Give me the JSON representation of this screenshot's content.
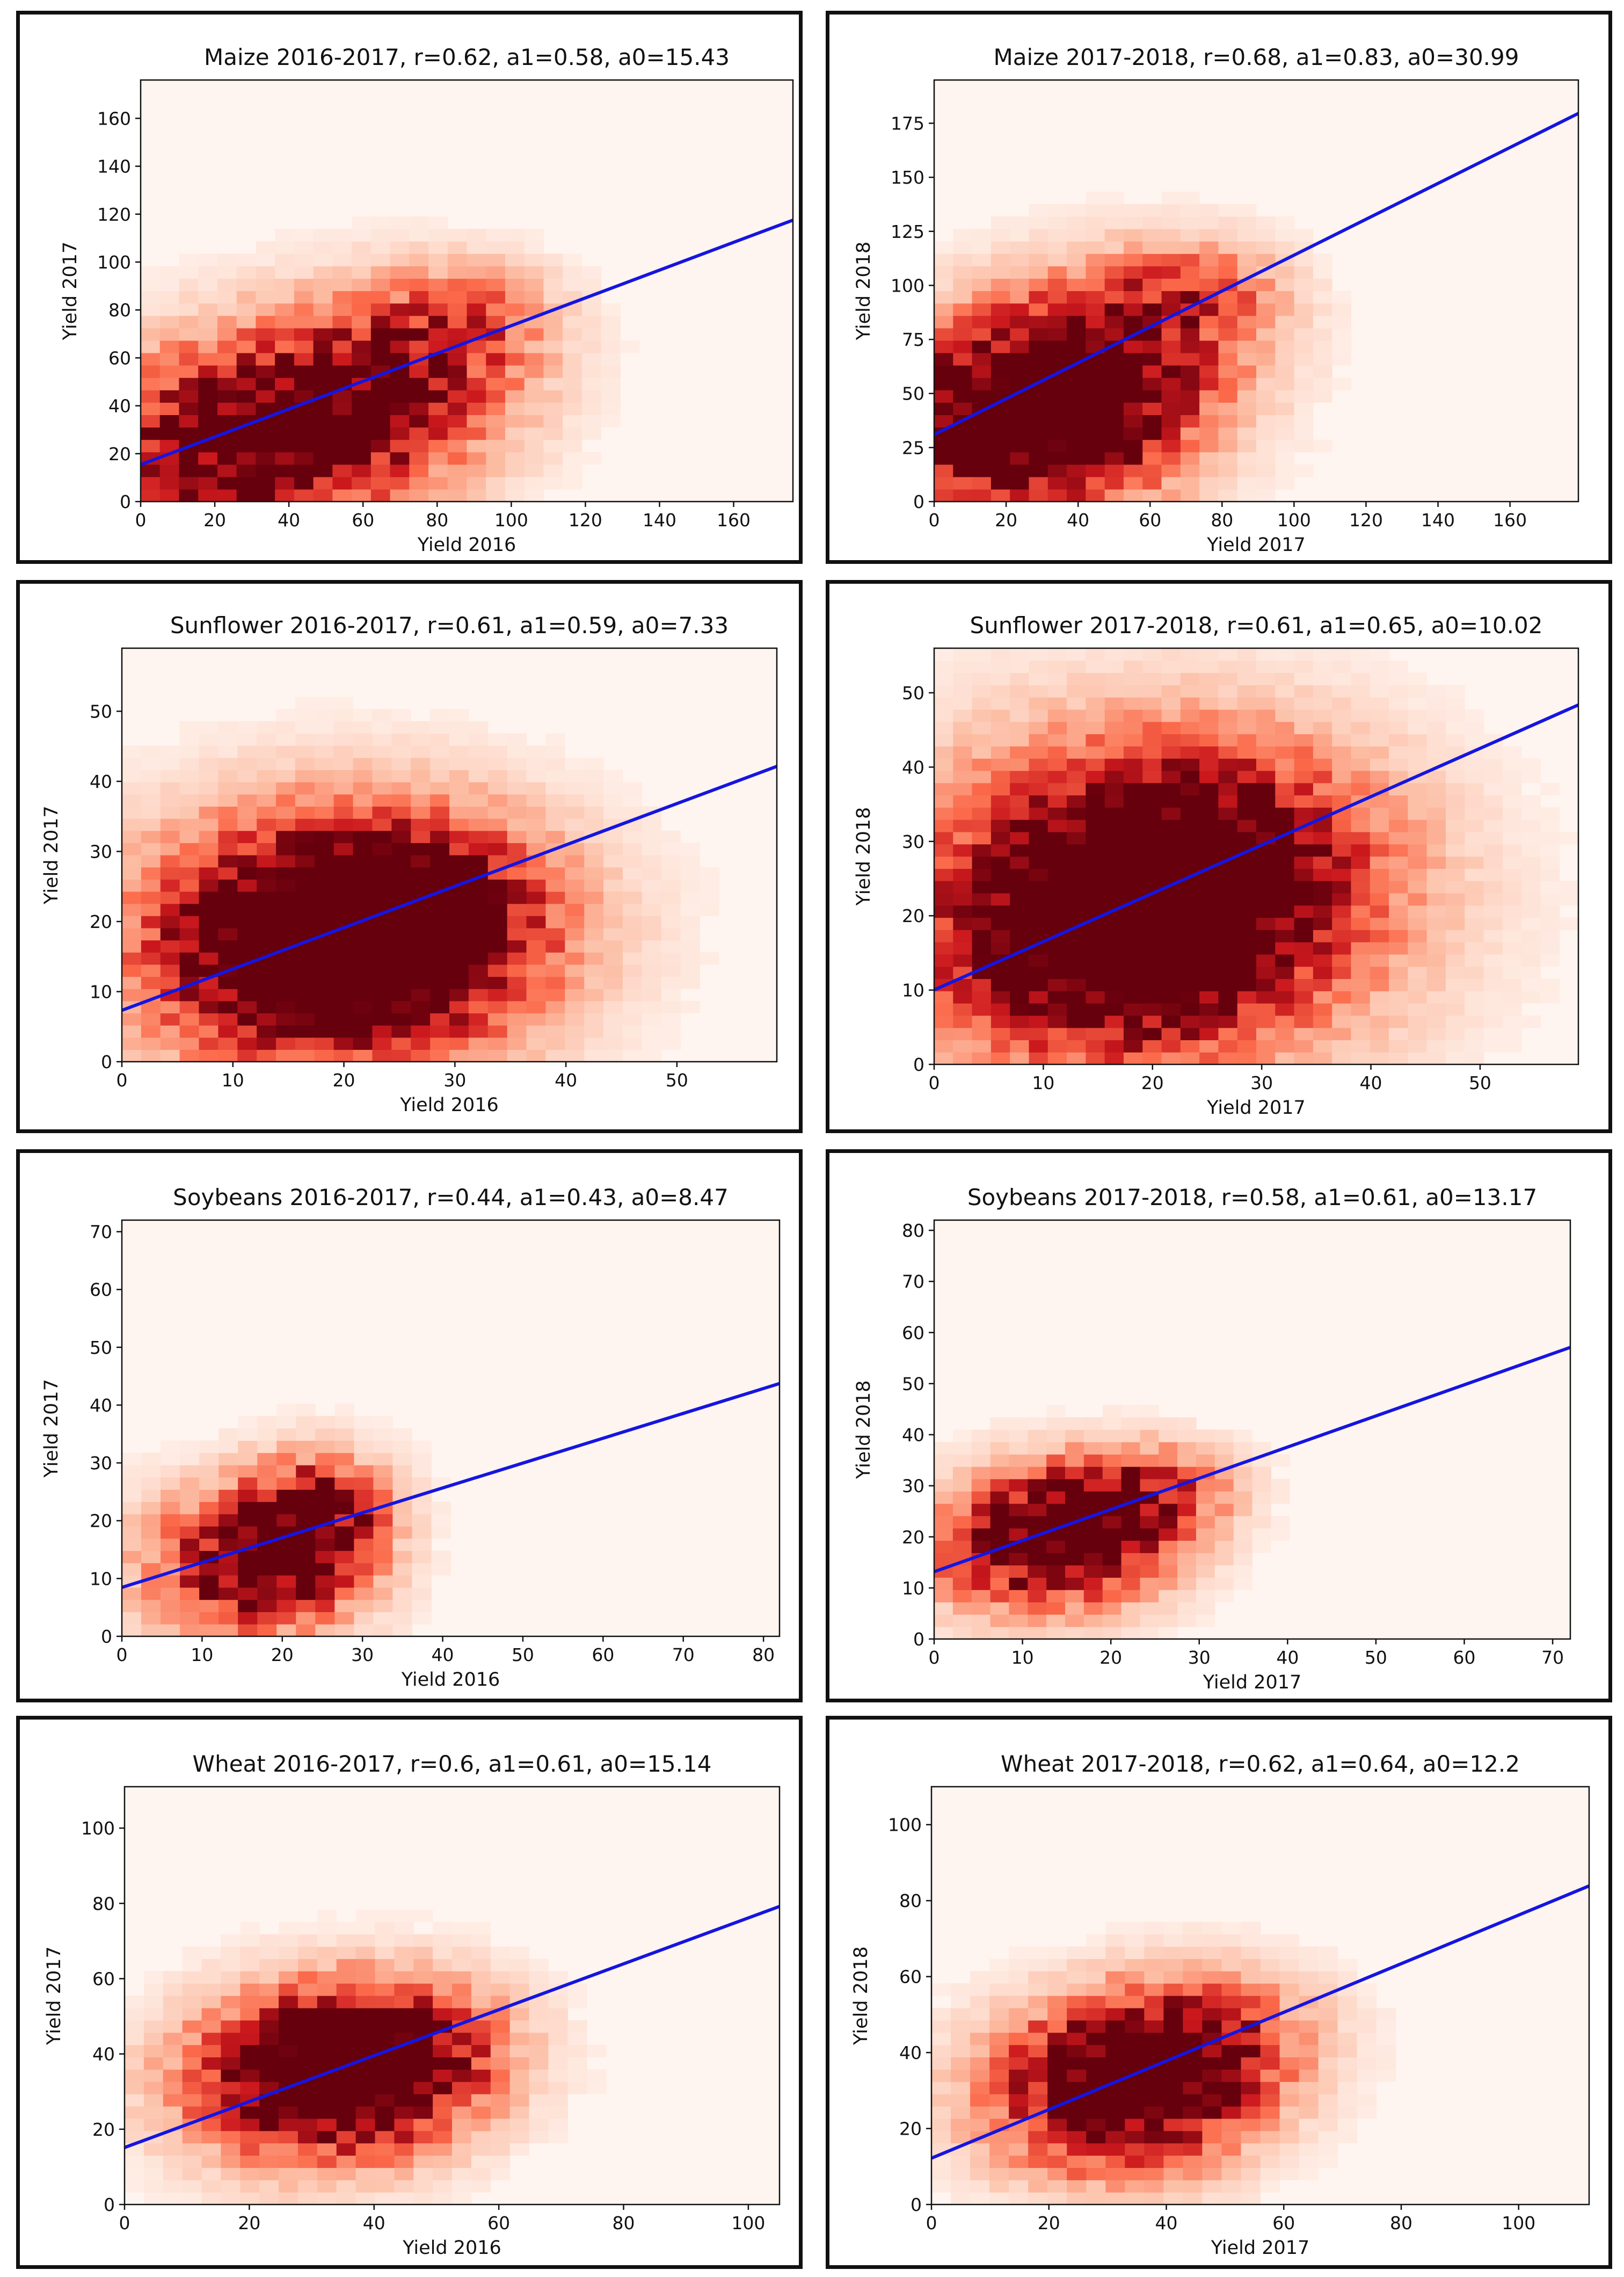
{
  "chart_data": [
    {
      "type": "heatmap",
      "title": "Maize 2016-2017, r=0.62, a1=0.58, a0=15.43",
      "xlabel": "Yield 2016",
      "ylabel": "Yield 2017",
      "xlim": [
        0,
        176
      ],
      "ylim": [
        0,
        176
      ],
      "xticks": [
        0,
        20,
        40,
        60,
        80,
        100,
        120,
        140,
        160
      ],
      "yticks": [
        0,
        20,
        40,
        60,
        80,
        100,
        120,
        140,
        160
      ],
      "regression": {
        "slope": 0.58,
        "intercept": 15.43,
        "color": "#1515e0"
      },
      "density": {
        "centers": [
          [
            25,
            22,
            55,
            1.0
          ],
          [
            55,
            40,
            55,
            0.6
          ],
          [
            75,
            60,
            45,
            0.45
          ],
          [
            90,
            80,
            30,
            0.3
          ]
        ],
        "noise": 0.35
      },
      "bins": 34
    },
    {
      "type": "heatmap",
      "title": "Maize 2017-2018, r=0.68, a1=0.83, a0=30.99",
      "xlabel": "Yield 2017",
      "ylabel": "Yield 2018",
      "xlim": [
        0,
        179
      ],
      "ylim": [
        0,
        195
      ],
      "xticks": [
        0,
        20,
        40,
        60,
        80,
        100,
        120,
        140,
        160
      ],
      "yticks": [
        0,
        25,
        50,
        75,
        100,
        125,
        150,
        175
      ],
      "regression": {
        "slope": 0.83,
        "intercept": 30.99,
        "color": "#1515e0"
      },
      "density": {
        "centers": [
          [
            22,
            30,
            55,
            1.0
          ],
          [
            35,
            52,
            55,
            0.8
          ],
          [
            55,
            80,
            50,
            0.5
          ],
          [
            75,
            100,
            30,
            0.35
          ]
        ],
        "noise": 0.35
      },
      "bins": 34
    },
    {
      "type": "heatmap",
      "title": "Sunflower 2016-2017, r=0.61, a1=0.59, a0=7.33",
      "xlabel": "Yield 2016",
      "ylabel": "Yield 2017",
      "xlim": [
        0,
        59
      ],
      "ylim": [
        0,
        59
      ],
      "xticks": [
        0,
        10,
        20,
        30,
        40,
        50
      ],
      "yticks": [
        0,
        10,
        20,
        30,
        40,
        50
      ],
      "regression": {
        "slope": 0.59,
        "intercept": 7.33,
        "color": "#1515e0"
      },
      "density": {
        "centers": [
          [
            20,
            18,
            25,
            1.0
          ],
          [
            17,
            14,
            20,
            0.6
          ],
          [
            25,
            22,
            18,
            0.6
          ]
        ],
        "noise": 0.3
      },
      "bins": 34
    },
    {
      "type": "heatmap",
      "title": "Sunflower 2017-2018, r=0.61, a1=0.65, a0=10.02",
      "xlabel": "Yield 2017",
      "ylabel": "Yield 2018",
      "xlim": [
        0,
        59
      ],
      "ylim": [
        0,
        56
      ],
      "xticks": [
        0,
        10,
        20,
        30,
        40,
        50
      ],
      "yticks": [
        0,
        10,
        20,
        30,
        40,
        50
      ],
      "regression": {
        "slope": 0.65,
        "intercept": 10.02,
        "color": "#1515e0"
      },
      "density": {
        "centers": [
          [
            19,
            22,
            30,
            1.0
          ],
          [
            15,
            15,
            20,
            0.6
          ],
          [
            25,
            28,
            20,
            0.6
          ]
        ],
        "noise": 0.3
      },
      "bins": 34
    },
    {
      "type": "heatmap",
      "title": "Soybeans 2016-2017, r=0.44, a1=0.43, a0=8.47",
      "xlabel": "Yield 2016",
      "ylabel": "Yield 2017",
      "xlim": [
        0,
        82
      ],
      "ylim": [
        0,
        72
      ],
      "xticks": [
        0,
        10,
        20,
        30,
        40,
        50,
        60,
        70,
        80
      ],
      "yticks": [
        0,
        10,
        20,
        30,
        40,
        50,
        60,
        70
      ],
      "regression": {
        "slope": 0.43,
        "intercept": 8.47,
        "color": "#1515e0"
      },
      "density": {
        "centers": [
          [
            16,
            12,
            18,
            1.0
          ],
          [
            23,
            18,
            12,
            0.7
          ],
          [
            25,
            25,
            12,
            0.45
          ]
        ],
        "noise": 0.4
      },
      "bins": 34
    },
    {
      "type": "heatmap",
      "title": "Soybeans 2017-2018, r=0.58, a1=0.61, a0=13.17",
      "xlabel": "Yield 2017",
      "ylabel": "Yield 2018",
      "xlim": [
        0,
        72
      ],
      "ylim": [
        0,
        82
      ],
      "xticks": [
        0,
        10,
        20,
        30,
        40,
        50,
        60,
        70
      ],
      "yticks": [
        0,
        10,
        20,
        30,
        40,
        50,
        60,
        70,
        80
      ],
      "regression": {
        "slope": 0.61,
        "intercept": 13.17,
        "color": "#1515e0"
      },
      "density": {
        "centers": [
          [
            12,
            18,
            18,
            1.0
          ],
          [
            18,
            25,
            15,
            0.7
          ],
          [
            26,
            30,
            12,
            0.4
          ]
        ],
        "noise": 0.35
      },
      "bins": 34
    },
    {
      "type": "heatmap",
      "title": "Wheat 2016-2017, r=0.6, a1=0.61, a0=15.14",
      "xlabel": "Yield 2016",
      "ylabel": "Yield 2017",
      "xlim": [
        0,
        105
      ],
      "ylim": [
        0,
        111
      ],
      "xticks": [
        0,
        20,
        40,
        60,
        80,
        100
      ],
      "yticks": [
        0,
        20,
        40,
        60,
        80,
        100
      ],
      "regression": {
        "slope": 0.61,
        "intercept": 15.14,
        "color": "#1515e0"
      },
      "density": {
        "centers": [
          [
            30,
            32,
            30,
            1.0
          ],
          [
            38,
            38,
            25,
            0.8
          ],
          [
            45,
            45,
            25,
            0.4
          ]
        ],
        "noise": 0.35
      },
      "bins": 34
    },
    {
      "type": "heatmap",
      "title": "Wheat 2017-2018, r=0.62, a1=0.64, a0=12.2",
      "xlabel": "Yield 2017",
      "ylabel": "Yield 2018",
      "xlim": [
        0,
        112
      ],
      "ylim": [
        0,
        110
      ],
      "xticks": [
        0,
        20,
        40,
        60,
        80,
        100
      ],
      "yticks": [
        0,
        20,
        40,
        60,
        80,
        100
      ],
      "regression": {
        "slope": 0.64,
        "intercept": 12.2,
        "color": "#1515e0"
      },
      "density": {
        "centers": [
          [
            30,
            28,
            30,
            1.0
          ],
          [
            38,
            38,
            25,
            0.7
          ],
          [
            50,
            45,
            25,
            0.4
          ]
        ],
        "noise": 0.35
      },
      "bins": 34
    }
  ]
}
